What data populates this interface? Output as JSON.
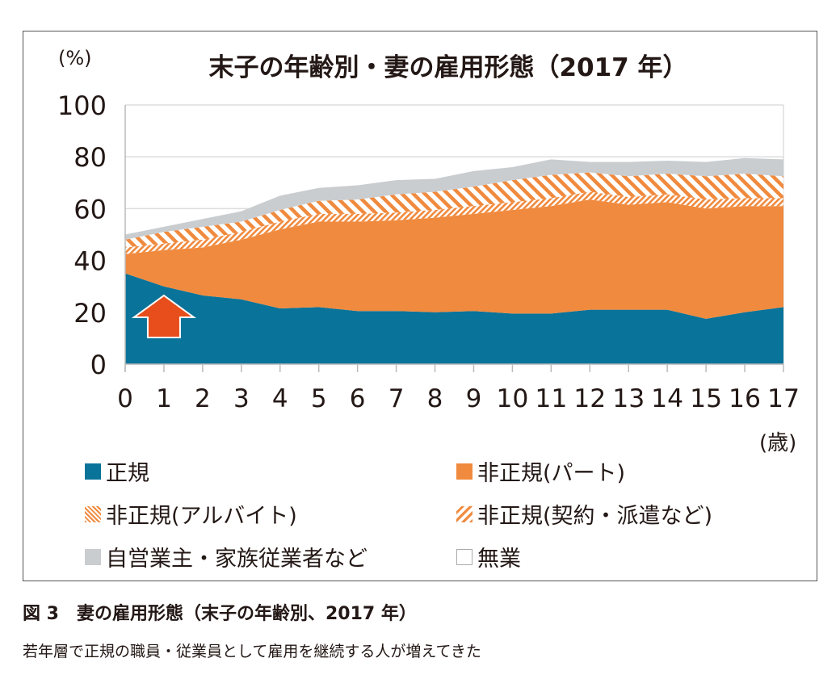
{
  "chart_data": {
    "type": "area",
    "stacked": true,
    "title": "末子の年齢別・妻の雇用形態（2017 年）",
    "ylabel": "(%)",
    "xlabel": "(歳)",
    "ylim": [
      0,
      100
    ],
    "yticks": [
      "0",
      "20",
      "40",
      "60",
      "80",
      "100"
    ],
    "x": [
      "0",
      "1",
      "2",
      "3",
      "4",
      "5",
      "6",
      "7",
      "8",
      "9",
      "10",
      "11",
      "12",
      "13",
      "14",
      "15",
      "16",
      "17"
    ],
    "grid": true,
    "legend_position": "bottom",
    "series": [
      {
        "name": "正規",
        "color": "#0a7399",
        "fill": "solid",
        "values": [
          35,
          30,
          26.5,
          25,
          21.5,
          22,
          20.5,
          20.5,
          20,
          20.5,
          19.5,
          19.5,
          21,
          21,
          21,
          17.5,
          20,
          22
        ]
      },
      {
        "name": "非正規(パート)",
        "color": "#f08a3e",
        "fill": "solid",
        "values": [
          7.5,
          14,
          18.5,
          23,
          30.5,
          33,
          34.5,
          35,
          36.5,
          37.5,
          40,
          41.5,
          42.5,
          40.5,
          41.5,
          42.5,
          41,
          39
        ]
      },
      {
        "name": "非正規(アルバイト)",
        "color": "#f08a3e",
        "fill": "fine-hatch",
        "values": [
          2.5,
          2.5,
          3,
          3,
          3,
          3,
          3,
          3,
          3,
          3,
          3,
          3,
          3,
          3,
          3,
          3.5,
          3,
          3
        ]
      },
      {
        "name": "非正規(契約・派遣など)",
        "color": "#f08a3e",
        "fill": "wide-hatch",
        "values": [
          3,
          4.5,
          5,
          4,
          4.5,
          5,
          5.5,
          7,
          7,
          7.5,
          8.5,
          9,
          7.5,
          8,
          8,
          9,
          9.5,
          8.5
        ]
      },
      {
        "name": "自営業主・家族従業者など",
        "color": "#c9cdd0",
        "fill": "solid",
        "values": [
          2,
          2,
          3,
          4,
          5.5,
          5,
          5.5,
          5.5,
          5,
          6,
          5,
          6,
          4,
          5.5,
          5,
          5.5,
          6,
          6.5
        ]
      },
      {
        "name": "無業",
        "color": "#ffffff",
        "fill": "solid",
        "values": [
          50,
          47,
          44,
          41,
          35,
          32,
          31,
          29,
          28.5,
          25.5,
          24,
          21,
          22,
          22,
          21.5,
          22,
          20.5,
          21
        ]
      }
    ],
    "annotation": {
      "type": "arrow-up",
      "at_x": "1",
      "color": "#e84e1b"
    }
  },
  "caption": "図 3　妻の雇用形態（末子の年齢別、2017 年）",
  "subcaption": "若年層で正規の職員・従業員として雇用を継続する人が増えてきた"
}
